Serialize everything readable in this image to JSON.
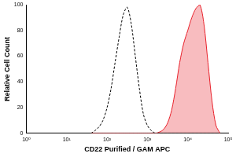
{
  "chart_data": {
    "type": "line",
    "x_label": "CD22 Purified / GAM APC",
    "y_label": "Relative Cell Count",
    "log": "x",
    "grid": false,
    "x": [
      40,
      50,
      63,
      79,
      100,
      126,
      158,
      200,
      251,
      316,
      398,
      501,
      631,
      794,
      1000,
      1259,
      1585,
      1995,
      2512,
      3162,
      3981,
      5012,
      6310,
      7943,
      10000,
      12589,
      15849,
      19953,
      25119,
      31623,
      39811,
      50119,
      63096
    ],
    "series": [
      {
        "color": "#000000",
        "line_style": "dashed",
        "marker": "none",
        "values": [
          0,
          2,
          5,
          10,
          20,
          35,
          55,
          75,
          92,
          98,
          85,
          60,
          35,
          15,
          6,
          2,
          0,
          0,
          0,
          0,
          0,
          0,
          0,
          0,
          0,
          0,
          0,
          0,
          0,
          0,
          0,
          0,
          0
        ]
      },
      {
        "color": "#e8202a",
        "line_style": "solid",
        "marker": "none",
        "values": [
          0,
          0,
          0,
          0,
          0,
          0,
          0,
          0,
          0,
          0,
          0,
          0,
          0,
          0,
          0,
          0,
          0,
          1,
          3,
          8,
          18,
          35,
          55,
          70,
          80,
          90,
          97,
          100,
          85,
          55,
          25,
          6,
          0
        ]
      }
    ],
    "xlim": [
      1,
      100000
    ],
    "xticks": [
      {
        "value": 1,
        "label": "10⁰"
      },
      {
        "value": 10,
        "label": "10¹"
      },
      {
        "value": 100,
        "label": "10²"
      },
      {
        "value": 1000,
        "label": "10³"
      },
      {
        "value": 10000,
        "label": "10⁴"
      },
      {
        "value": 100000,
        "label": "10⁵"
      }
    ],
    "ylim": [
      0,
      100
    ],
    "yticks": [
      0,
      20,
      40,
      60,
      80,
      100
    ]
  }
}
